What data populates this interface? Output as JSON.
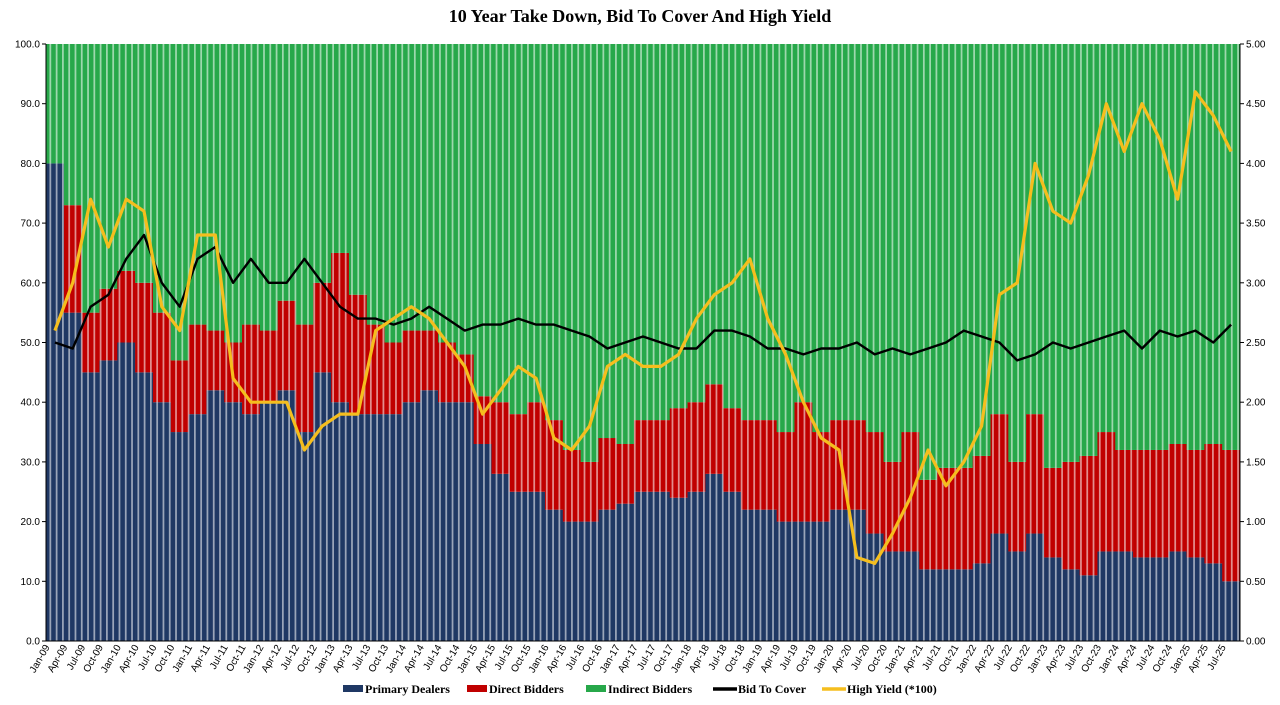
{
  "chart_data": {
    "type": "bar",
    "title": "10 Year Take Down, Bid To Cover And High Yield",
    "y_left": {
      "range": [
        0,
        100
      ],
      "ticks": [
        "0.0",
        "10.0",
        "20.0",
        "30.0",
        "40.0",
        "50.0",
        "60.0",
        "70.0",
        "80.0",
        "90.0",
        "100.0"
      ]
    },
    "y_right": {
      "range": [
        0,
        5
      ],
      "ticks": [
        "0.00",
        "0.50",
        "1.00",
        "1.50",
        "2.00",
        "2.50",
        "3.00",
        "3.50",
        "4.00",
        "4.50",
        "5.00"
      ]
    },
    "grid": false,
    "legend_position": "bottom-center",
    "colors": {
      "primary_dealers": "#1f3864",
      "direct_bidders": "#c00000",
      "indirect_bidders": "#27a84a",
      "bid_to_cover": "#000000",
      "high_yield": "#f5be1e",
      "stripe": "#ffffff"
    },
    "x_labels": [
      "Jan-09",
      "Apr-09",
      "Jul-09",
      "Oct-09",
      "Jan-10",
      "Apr-10",
      "Jul-10",
      "Oct-10",
      "Jan-11",
      "Apr-11",
      "Jul-11",
      "Oct-11",
      "Jan-12",
      "Apr-12",
      "Jul-12",
      "Oct-12",
      "Jan-13",
      "Apr-13",
      "Jul-13",
      "Oct-13",
      "Jan-14",
      "Apr-14",
      "Jul-14",
      "Oct-14",
      "Jan-15",
      "Apr-15",
      "Jul-15",
      "Oct-15",
      "Jan-16",
      "Apr-16",
      "Jul-16",
      "Oct-16",
      "Jan-17",
      "Apr-17",
      "Jul-17",
      "Oct-17",
      "Jan-18",
      "Apr-18",
      "Jul-18",
      "Oct-18",
      "Jan-19",
      "Apr-19",
      "Jul-19",
      "Oct-19",
      "Jan-20",
      "Apr-20",
      "Jul-20",
      "Oct-20",
      "Jan-21",
      "Apr-21",
      "Jul-21",
      "Oct-21",
      "Jan-22",
      "Apr-22",
      "Jul-22",
      "Oct-22",
      "Jan-23",
      "Apr-23",
      "Jul-23",
      "Oct-23",
      "Jan-24",
      "Apr-24",
      "Jul-24",
      "Oct-24",
      "Jan-25",
      "Apr-25",
      "Jul-25"
    ],
    "series": [
      {
        "name": "Primary Dealers",
        "axis": "left",
        "kind": "stacked_bar",
        "values": [
          80,
          55,
          45,
          47,
          50,
          45,
          40,
          35,
          38,
          42,
          40,
          38,
          40,
          42,
          35,
          45,
          40,
          38,
          38,
          38,
          40,
          42,
          40,
          40,
          33,
          28,
          25,
          25,
          22,
          20,
          20,
          22,
          23,
          25,
          25,
          24,
          25,
          28,
          25,
          22,
          22,
          20,
          20,
          20,
          22,
          22,
          18,
          15,
          15,
          12,
          12,
          12,
          13,
          18,
          15,
          18,
          14,
          12,
          11,
          15,
          15,
          14,
          14,
          15,
          14,
          13,
          10
        ]
      },
      {
        "name": "Direct Bidders",
        "axis": "left",
        "kind": "stacked_bar",
        "values": [
          0,
          18,
          10,
          12,
          12,
          15,
          15,
          12,
          15,
          10,
          10,
          15,
          12,
          15,
          18,
          15,
          25,
          20,
          15,
          12,
          12,
          10,
          10,
          8,
          8,
          12,
          13,
          15,
          15,
          12,
          10,
          12,
          10,
          12,
          12,
          15,
          15,
          15,
          14,
          15,
          15,
          15,
          20,
          15,
          15,
          15,
          17,
          15,
          20,
          15,
          17,
          17,
          18,
          20,
          15,
          20,
          15,
          18,
          20,
          20,
          17,
          18,
          18,
          18,
          18,
          20,
          22
        ]
      },
      {
        "name": "Indirect Bidders",
        "axis": "left",
        "kind": "stacked_bar",
        "values": [
          20,
          27,
          45,
          41,
          38,
          40,
          45,
          53,
          47,
          48,
          50,
          47,
          48,
          43,
          47,
          40,
          35,
          42,
          47,
          50,
          48,
          48,
          50,
          52,
          59,
          60,
          62,
          60,
          63,
          68,
          70,
          66,
          67,
          63,
          63,
          61,
          60,
          57,
          61,
          63,
          63,
          65,
          60,
          65,
          63,
          63,
          65,
          70,
          65,
          73,
          71,
          71,
          69,
          62,
          70,
          62,
          71,
          70,
          69,
          65,
          68,
          68,
          68,
          67,
          68,
          67,
          68
        ]
      },
      {
        "name": "Bid To Cover",
        "axis": "right",
        "kind": "line",
        "values": [
          2.5,
          2.45,
          2.8,
          2.9,
          3.2,
          3.4,
          3.0,
          2.8,
          3.2,
          3.3,
          3.0,
          3.2,
          3.0,
          3.0,
          3.2,
          3.0,
          2.8,
          2.7,
          2.7,
          2.65,
          2.7,
          2.8,
          2.7,
          2.6,
          2.65,
          2.65,
          2.7,
          2.65,
          2.65,
          2.6,
          2.55,
          2.45,
          2.5,
          2.55,
          2.5,
          2.45,
          2.45,
          2.6,
          2.6,
          2.55,
          2.45,
          2.45,
          2.4,
          2.45,
          2.45,
          2.5,
          2.4,
          2.45,
          2.4,
          2.45,
          2.5,
          2.6,
          2.55,
          2.5,
          2.35,
          2.4,
          2.5,
          2.45,
          2.5,
          2.55,
          2.6,
          2.45,
          2.6,
          2.55,
          2.6,
          2.5,
          2.65
        ]
      },
      {
        "name": "High Yield (*100)",
        "axis": "right",
        "kind": "line",
        "values": [
          2.6,
          3.0,
          3.7,
          3.3,
          3.7,
          3.6,
          2.8,
          2.6,
          3.4,
          3.4,
          2.2,
          2.0,
          2.0,
          2.0,
          1.6,
          1.8,
          1.9,
          1.9,
          2.6,
          2.7,
          2.8,
          2.7,
          2.5,
          2.3,
          1.9,
          2.1,
          2.3,
          2.2,
          1.7,
          1.6,
          1.8,
          2.3,
          2.4,
          2.3,
          2.3,
          2.4,
          2.7,
          2.9,
          3.0,
          3.2,
          2.7,
          2.4,
          2.0,
          1.7,
          1.6,
          0.7,
          0.65,
          0.9,
          1.2,
          1.6,
          1.3,
          1.5,
          1.8,
          2.9,
          3.0,
          4.0,
          3.6,
          3.5,
          3.9,
          4.5,
          4.1,
          4.5,
          4.2,
          3.7,
          4.6,
          4.4,
          4.1
        ]
      }
    ]
  }
}
